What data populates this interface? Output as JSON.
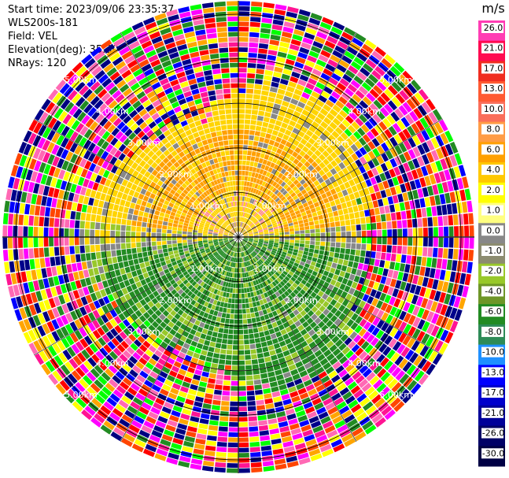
{
  "header": {
    "start_time": "Start time: 2023/09/06 23:35:37",
    "instrument": "WLS200s-181",
    "field": "Field: VEL",
    "elevation": "Elevation(deg): 35.30",
    "nrays": "NRays: 120"
  },
  "chart_data": {
    "type": "heatmap",
    "subtype": "ppi-polar",
    "field": "VEL",
    "units": "m/s",
    "n_rays": 120,
    "range_rings_km": [
      1,
      2,
      3,
      4,
      5
    ],
    "range_ring_labels": [
      "1.00km",
      "2.00km",
      "3.00km",
      "4.00km",
      "5.00km"
    ],
    "colorbar": {
      "label": "m/s",
      "ticks": [
        26.0,
        21.0,
        17.0,
        13.0,
        10.0,
        8.0,
        6.0,
        4.0,
        2.0,
        1.0,
        0.0,
        -1.0,
        -2.0,
        -4.0,
        -6.0,
        -8.0,
        -10.0,
        -13.0,
        -17.0,
        -21.0,
        -26.0,
        -30.0
      ],
      "tick_labels": [
        "26.0",
        "21.0",
        "17.0",
        "13.0",
        "10.0",
        "8.0",
        "6.0",
        "4.0",
        "2.0",
        "1.0",
        "0.0",
        "-1.0",
        "-2.0",
        "-4.0",
        "-6.0",
        "-8.0",
        "-10.0",
        "-13.0",
        "-17.0",
        "-21.0",
        "-26.0",
        "-30.0"
      ],
      "colors": [
        "#ff3db4",
        "#ff0a50",
        "#f02d20",
        "#ff5a32",
        "#fa6e5a",
        "#ff9c46",
        "#ffa000",
        "#ffc800",
        "#ffff00",
        "#ffff80",
        "#888888",
        "#8c8c70",
        "#98c82a",
        "#6e9628",
        "#228b22",
        "#2e8b57",
        "#1e90ff",
        "#0000ff",
        "#0000cc",
        "#000099",
        "#000066",
        "#000044"
      ]
    }
  },
  "colors": {
    "positive": "#ffd400",
    "positive_strong": "#ffa000",
    "zero": "#888888",
    "negative_weak": "#98c82a",
    "negative": "#228b22",
    "noise": [
      "#ff1493",
      "#ff00ff",
      "#00ff00",
      "#ff0000",
      "#0000ff",
      "#ffff00",
      "#ffa500",
      "#000080",
      "#ff69b4",
      "#228b22",
      "#00008b",
      "#ff4500"
    ]
  }
}
